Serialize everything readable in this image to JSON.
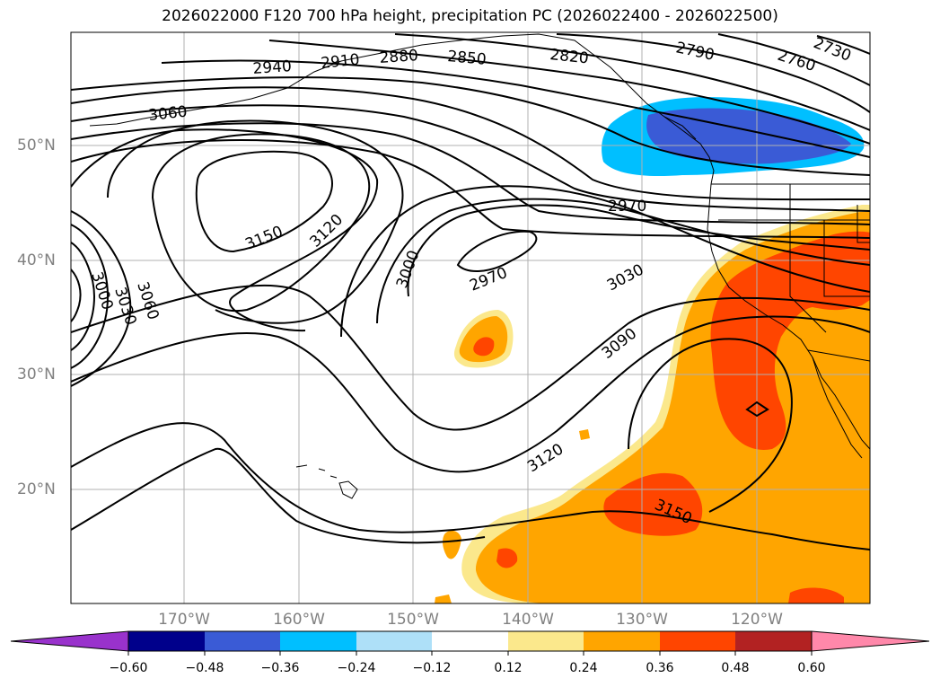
{
  "title": "2026022000 F120 700 hPa height, precipitation PC (2026022400 - 2026022500)",
  "lat_labels": [
    "50°N",
    "40°N",
    "30°N",
    "20°N"
  ],
  "lon_labels": [
    "170°W",
    "160°W",
    "150°W",
    "140°W",
    "130°W",
    "120°W"
  ],
  "contour_labels": [
    "2730",
    "2760",
    "2790",
    "2820",
    "2850",
    "2880",
    "2910",
    "2940",
    "3060",
    "2970",
    "3150",
    "3120",
    "3000",
    "2970",
    "3030",
    "3090",
    "3120",
    "3150",
    "3000",
    "3030",
    "3060"
  ],
  "colorbar": {
    "ticks": [
      "−0.60",
      "−0.48",
      "−0.36",
      "−0.24",
      "−0.12",
      "0.12",
      "0.24",
      "0.36",
      "0.48",
      "0.60"
    ],
    "colors": [
      "#9932cc",
      "#00008b",
      "#3a5bd6",
      "#00bfff",
      "#aee0f8",
      "#ffffff",
      "#fbe88c",
      "#ffa500",
      "#ff4500",
      "#b22222",
      "#ff88aa"
    ]
  },
  "fill_colors": {
    "light_blue": "#00bfff",
    "dark_blue": "#3a5bd6",
    "pale_yellow": "#fbe88c",
    "orange": "#ffa500",
    "red_orange": "#ff4500"
  }
}
